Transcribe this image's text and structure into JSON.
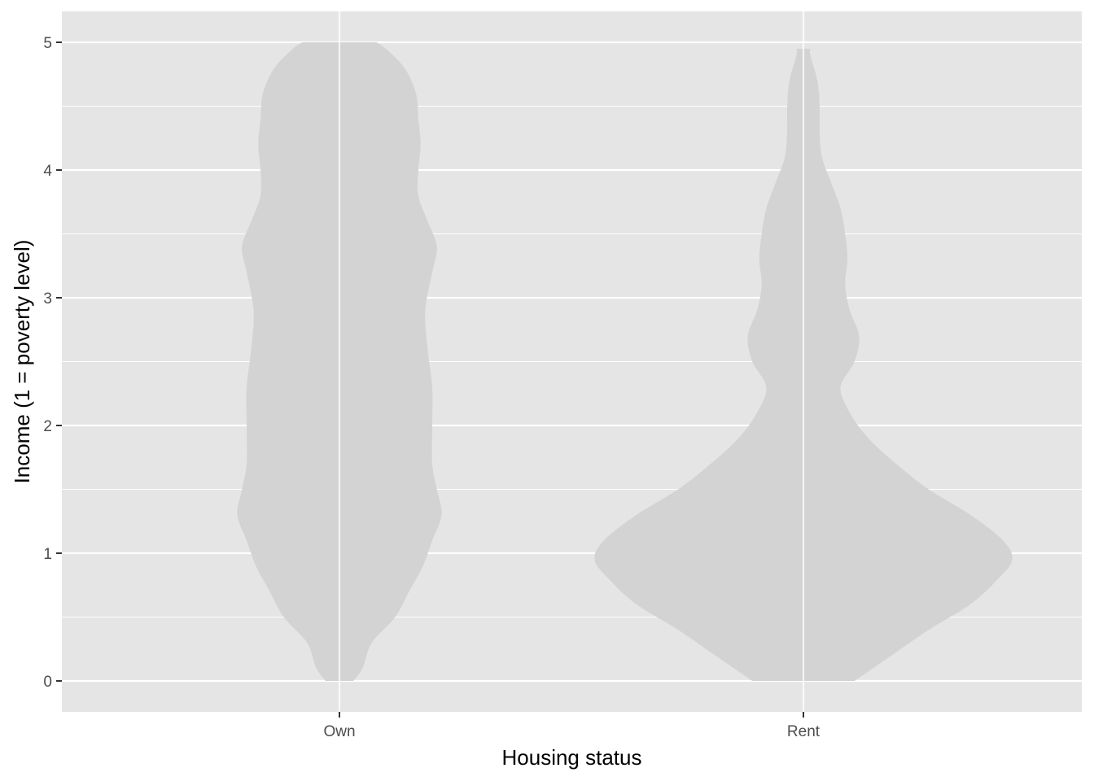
{
  "chart_data": {
    "type": "violin",
    "xlabel": "Housing status",
    "ylabel": "Income (1 = poverty level)",
    "categories": [
      "Own",
      "Rent"
    ],
    "ylim": [
      -0.25,
      5.25
    ],
    "yticks": [
      0,
      1,
      2,
      3,
      4,
      5
    ],
    "grid": true,
    "legend": "none",
    "colors": {
      "panel": "#e5e5e5",
      "grid_major": "#ffffff",
      "violin_fill": "#d3d3d3",
      "tick": "#333333",
      "tick_label": "#4d4d4d",
      "axis_title": "#000000"
    },
    "series": [
      {
        "category": "Own",
        "y_range": [
          0,
          5
        ],
        "density_profile": [
          {
            "y": 0.0,
            "half_width": 0.03
          },
          {
            "y": 0.1,
            "half_width": 0.05
          },
          {
            "y": 0.3,
            "half_width": 0.07
          },
          {
            "y": 0.5,
            "half_width": 0.12
          },
          {
            "y": 0.7,
            "half_width": 0.15
          },
          {
            "y": 0.9,
            "half_width": 0.18
          },
          {
            "y": 1.1,
            "half_width": 0.2
          },
          {
            "y": 1.3,
            "half_width": 0.22
          },
          {
            "y": 1.5,
            "half_width": 0.21
          },
          {
            "y": 1.7,
            "half_width": 0.2
          },
          {
            "y": 2.0,
            "half_width": 0.2
          },
          {
            "y": 2.3,
            "half_width": 0.2
          },
          {
            "y": 2.6,
            "half_width": 0.19
          },
          {
            "y": 2.9,
            "half_width": 0.185
          },
          {
            "y": 3.2,
            "half_width": 0.2
          },
          {
            "y": 3.4,
            "half_width": 0.21
          },
          {
            "y": 3.6,
            "half_width": 0.19
          },
          {
            "y": 3.8,
            "half_width": 0.17
          },
          {
            "y": 4.0,
            "half_width": 0.17
          },
          {
            "y": 4.2,
            "half_width": 0.175
          },
          {
            "y": 4.4,
            "half_width": 0.17
          },
          {
            "y": 4.6,
            "half_width": 0.165
          },
          {
            "y": 4.8,
            "half_width": 0.14
          },
          {
            "y": 4.95,
            "half_width": 0.1
          },
          {
            "y": 5.0,
            "half_width": 0.08
          }
        ]
      },
      {
        "category": "Rent",
        "y_range": [
          0,
          4.95
        ],
        "density_profile": [
          {
            "y": 0.0,
            "half_width": 0.11
          },
          {
            "y": 0.2,
            "half_width": 0.19
          },
          {
            "y": 0.4,
            "half_width": 0.27
          },
          {
            "y": 0.6,
            "half_width": 0.36
          },
          {
            "y": 0.8,
            "half_width": 0.42
          },
          {
            "y": 0.95,
            "half_width": 0.45
          },
          {
            "y": 1.1,
            "half_width": 0.43
          },
          {
            "y": 1.3,
            "half_width": 0.36
          },
          {
            "y": 1.5,
            "half_width": 0.27
          },
          {
            "y": 1.7,
            "half_width": 0.2
          },
          {
            "y": 1.9,
            "half_width": 0.14
          },
          {
            "y": 2.1,
            "half_width": 0.1
          },
          {
            "y": 2.3,
            "half_width": 0.08
          },
          {
            "y": 2.5,
            "half_width": 0.11
          },
          {
            "y": 2.7,
            "half_width": 0.12
          },
          {
            "y": 2.9,
            "half_width": 0.1
          },
          {
            "y": 3.1,
            "half_width": 0.09
          },
          {
            "y": 3.3,
            "half_width": 0.095
          },
          {
            "y": 3.5,
            "half_width": 0.09
          },
          {
            "y": 3.7,
            "half_width": 0.08
          },
          {
            "y": 3.9,
            "half_width": 0.06
          },
          {
            "y": 4.1,
            "half_width": 0.04
          },
          {
            "y": 4.3,
            "half_width": 0.035
          },
          {
            "y": 4.5,
            "half_width": 0.035
          },
          {
            "y": 4.7,
            "half_width": 0.03
          },
          {
            "y": 4.9,
            "half_width": 0.015
          },
          {
            "y": 4.95,
            "half_width": 0.015
          }
        ]
      }
    ]
  }
}
